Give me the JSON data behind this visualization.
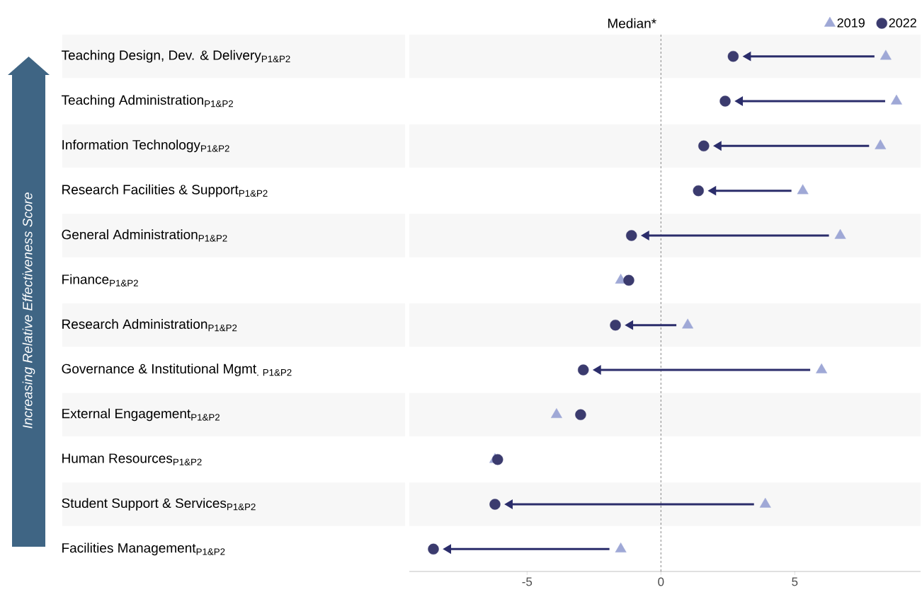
{
  "chart_data": {
    "type": "scatter",
    "orientation": "horizontal",
    "ylabel": "Increasing Relative Effectiveness Score",
    "categories": [
      "Teaching Design, Dev. & Delivery$_{P1&P2}$",
      "Teaching Administration$_{P1&P2}$",
      "Information Technology$_{P1&P2}$",
      "Research Facilities & Support$_{P1&P2}$",
      "General Administration$_{P1&P2}$",
      "Finance$_{P1&P2}$",
      "Research Administration$_{P1&P2}$",
      "Governance & Institutional Mgmt$_{. P1&P2}$",
      "External Engagement$_{P1&P2}$",
      "Human Resources$_{P1&P2}$",
      "Student Support & Services$_{P1&P2}$",
      "Facilities Management$_{P1&P2}$"
    ],
    "series": [
      {
        "name": "2019",
        "color": "#9fa8d6",
        "marker": "triangle",
        "values": [
          8.4,
          8.8,
          8.2,
          5.3,
          6.7,
          -1.5,
          1.0,
          6.0,
          -3.9,
          -6.2,
          3.9,
          -1.5
        ]
      },
      {
        "name": "2022",
        "color": "#3b3b6e",
        "marker": "circle",
        "values": [
          2.7,
          2.4,
          1.6,
          1.4,
          -1.1,
          -1.2,
          -1.7,
          -2.9,
          -3.0,
          -6.1,
          -6.2,
          -8.5
        ]
      }
    ],
    "xlim": [
      -9.4,
      9.7
    ],
    "xticks": [
      -5,
      0,
      5
    ],
    "ref_lines": [
      {
        "axis": "x",
        "value": 0,
        "label": "Median*",
        "color": "#666666",
        "line_style": "dashed"
      }
    ],
    "grid": false,
    "legend": "top right"
  }
}
